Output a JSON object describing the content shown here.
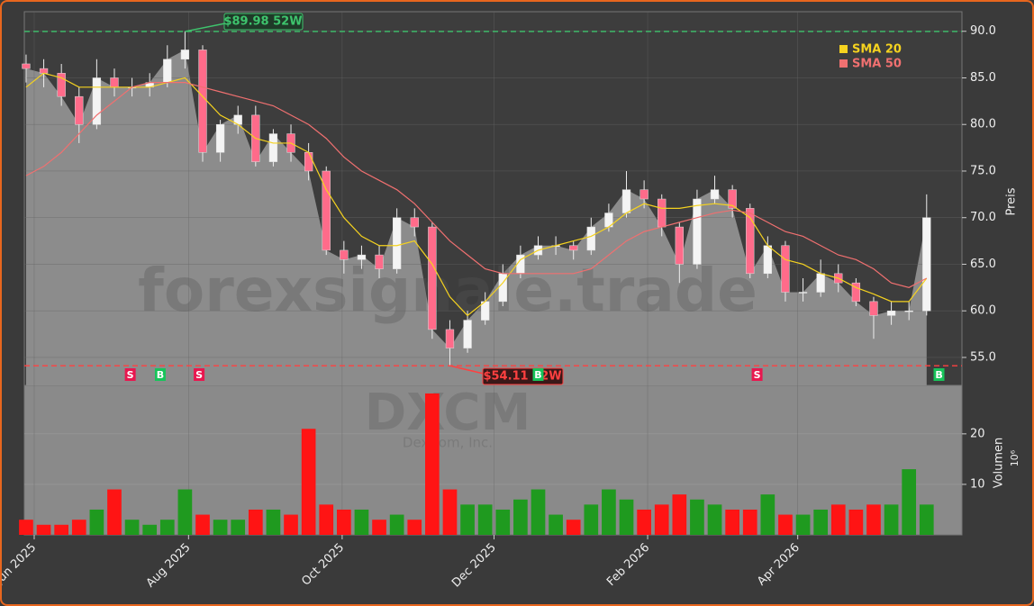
{
  "chart_data": {
    "type": "candlestick",
    "y_label": "Preis",
    "volume_label": "Volumen",
    "volume_unit": "10⁶",
    "watermark": "forexsignale.trade",
    "ticker": "DXCM",
    "company": "DexCom, Inc.",
    "xlim": [
      -0.1,
      53.0
    ],
    "xticks": [
      {
        "value": 0.46,
        "label": "Jun 2025"
      },
      {
        "value": 9.2,
        "label": "Aug 2025"
      },
      {
        "value": 17.9,
        "label": "Oct 2025"
      },
      {
        "value": 26.5,
        "label": "Dec 2025"
      },
      {
        "value": 35.2,
        "label": "Feb 2026"
      },
      {
        "value": 43.7,
        "label": "Apr 2026"
      }
    ],
    "ylim": [
      52.0,
      92.1
    ],
    "yticks": [
      {
        "value": 55,
        "label": "55.0"
      },
      {
        "value": 60,
        "label": "60.0"
      },
      {
        "value": 65,
        "label": "65.0"
      },
      {
        "value": 70,
        "label": "70.0"
      },
      {
        "value": 75,
        "label": "75.0"
      },
      {
        "value": 80,
        "label": "80.0"
      },
      {
        "value": 85,
        "label": "85.0"
      },
      {
        "value": 90,
        "label": "90.0"
      }
    ],
    "volume_ylim": [
      0,
      29.6
    ],
    "volume_yticks": [
      10,
      20
    ],
    "up_color": "#1f9a1f",
    "down_color": "#ff1414",
    "open": [
      86.5,
      86,
      85.5,
      83,
      80,
      85,
      84,
      84,
      84.5,
      87,
      88,
      77,
      80,
      81,
      76,
      79,
      77,
      75,
      66.5,
      65.5,
      66,
      64.5,
      70,
      69,
      58,
      56,
      59,
      61,
      64,
      66,
      67,
      67,
      66.5,
      69,
      70.5,
      73,
      72,
      69,
      65,
      72,
      73,
      71,
      64,
      67,
      62,
      62,
      64,
      63,
      61,
      59.5,
      60,
      60
    ],
    "high": [
      87.5,
      87,
      86.5,
      84,
      87,
      86,
      85,
      85.5,
      88.5,
      89.98,
      88.5,
      80.5,
      82,
      82,
      79.5,
      80,
      78,
      75.5,
      67.5,
      67,
      67,
      71,
      71,
      69.5,
      59,
      60,
      62,
      65,
      67,
      68,
      68,
      67.5,
      70,
      71.5,
      75,
      74,
      72.5,
      69.5,
      73,
      74.5,
      73.5,
      71.5,
      68,
      67.5,
      63.5,
      65.5,
      65,
      63.5,
      61.5,
      61,
      61,
      72.5
    ],
    "low": [
      84.5,
      84,
      82,
      78,
      79.5,
      83,
      83,
      83,
      84,
      86,
      76,
      76,
      79,
      75.5,
      75.5,
      76,
      74,
      66,
      64,
      64.5,
      63.5,
      64,
      68,
      57,
      54.11,
      55.5,
      58.5,
      60.5,
      63.5,
      65.5,
      66,
      65.5,
      66,
      68.5,
      70,
      71,
      68,
      63,
      64.5,
      71.5,
      70,
      63.5,
      63.5,
      61,
      61,
      61.5,
      62,
      60.5,
      57,
      58.5,
      59,
      59.5
    ],
    "close": [
      86,
      85.5,
      83,
      80,
      85,
      84,
      84,
      84.5,
      87,
      88,
      77,
      80,
      81,
      76,
      79,
      77,
      75,
      66.5,
      65.5,
      66,
      64.5,
      70,
      69,
      58,
      56,
      59,
      61,
      64,
      66,
      67,
      67,
      66.5,
      69,
      70.5,
      73,
      72,
      69,
      65,
      72,
      73,
      71,
      64,
      67,
      62,
      62,
      64,
      63,
      61,
      59.5,
      60,
      60,
      70
    ],
    "volume": [
      3,
      2,
      2,
      3,
      5,
      9,
      3,
      2,
      3,
      9,
      4,
      3,
      3,
      5,
      5,
      4,
      21,
      6,
      5,
      5,
      3,
      4,
      3,
      28,
      9,
      6,
      6,
      5,
      7,
      9,
      4,
      3,
      6,
      9,
      7,
      5,
      6,
      8,
      7,
      6,
      5,
      5,
      8,
      4,
      4,
      5,
      6,
      5,
      6,
      6,
      13,
      6
    ],
    "series": [
      {
        "name": "SMA 20",
        "color": "#f5d21f",
        "values": [
          84,
          85.5,
          85,
          84,
          84,
          84,
          84,
          84,
          84.5,
          85,
          83,
          81,
          80,
          78.5,
          78,
          78,
          77,
          73,
          70,
          68,
          67,
          67,
          67.5,
          65,
          61.5,
          59.5,
          61,
          63,
          65.5,
          66.5,
          67,
          67.5,
          68,
          69,
          70.5,
          71.5,
          71,
          71,
          71.3,
          71.5,
          71.3,
          70,
          67,
          65.5,
          65,
          64,
          63.5,
          62.5,
          61.8,
          61,
          61,
          63.5
        ]
      },
      {
        "name": "SMA 50",
        "color": "#f07070",
        "values": [
          74.5,
          75.5,
          77,
          79,
          81,
          82.5,
          84,
          84.5,
          84.5,
          84.5,
          84,
          83.5,
          83,
          82.5,
          82,
          81,
          80,
          78.5,
          76.5,
          75,
          74,
          73,
          71.5,
          69.5,
          67.5,
          66,
          64.5,
          64,
          64,
          64,
          64,
          64,
          64.5,
          66,
          67.5,
          68.5,
          69,
          69.5,
          70,
          70.5,
          70.8,
          70.5,
          69.5,
          68.5,
          68,
          67,
          66,
          65.5,
          64.5,
          63,
          62.5,
          63.5
        ]
      }
    ],
    "signals": [
      {
        "x": 5.9,
        "label": "S",
        "color": "#e8174f"
      },
      {
        "x": 7.6,
        "label": "B",
        "color": "#17c45a"
      },
      {
        "x": 9.8,
        "label": "S",
        "color": "#e8174f"
      },
      {
        "x": 29.0,
        "label": "B",
        "color": "#17c45a"
      },
      {
        "x": 41.4,
        "label": "S",
        "color": "#e8174f"
      },
      {
        "x": 51.7,
        "label": "B",
        "color": "#17c45a"
      }
    ],
    "high_52w": {
      "value": 89.98,
      "label": "$89.98 52W",
      "color": "#3ec46d"
    },
    "low_52w": {
      "value": 54.11,
      "label": "$54.11 52W",
      "color": "#ff4040"
    }
  }
}
